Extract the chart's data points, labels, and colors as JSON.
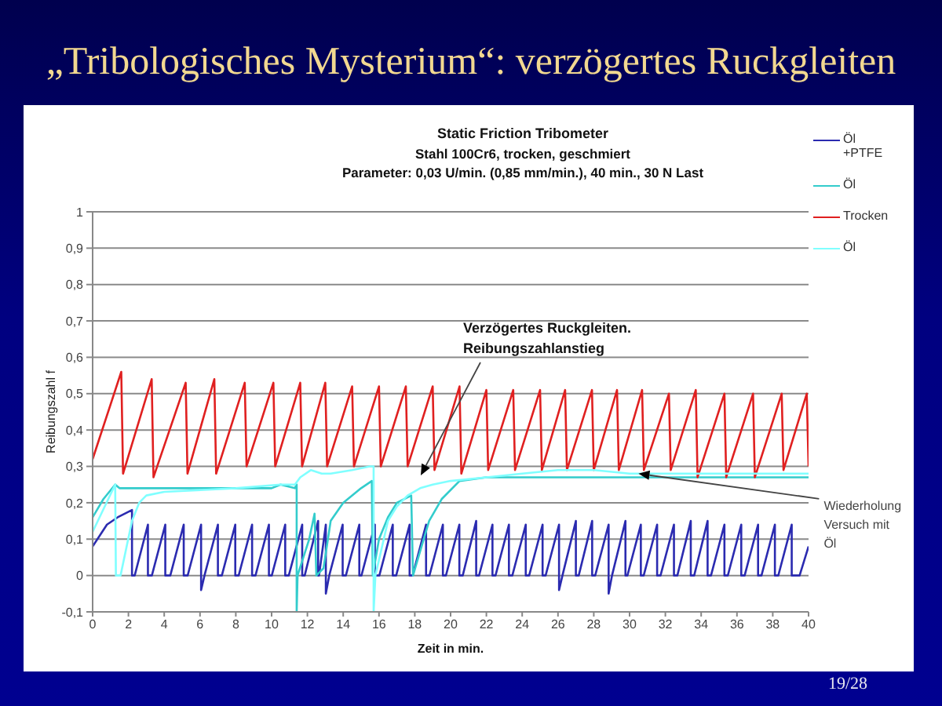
{
  "chart_data": {
    "type": "line",
    "title": "„Tribologisches Mysterium“: verzögertes Ruckgleiten",
    "subtitle": "Static Friction Tribometer\nStahl 100Cr6, trocken, geschmiert\nParameter: 0,03 U/min. (0,85 mm/min.), 40 min., 30 N Last",
    "xlabel": "Zeit in min.",
    "ylabel": "Reibungszahl f",
    "xlim": [
      0,
      40
    ],
    "xticks": [
      0,
      2,
      4,
      6,
      8,
      10,
      12,
      14,
      16,
      18,
      20,
      22,
      24,
      26,
      28,
      30,
      32,
      34,
      36,
      38,
      40
    ],
    "ylim": [
      -0.1,
      1
    ],
    "yticks": [
      {
        "value": -0.1,
        "label": "-0,1"
      },
      0,
      {
        "value": 0.1,
        "label": "0,1"
      },
      {
        "value": 0.2,
        "label": "0,2"
      },
      {
        "value": 0.3,
        "label": "0,3"
      },
      {
        "value": 0.4,
        "label": "0,4"
      },
      {
        "value": 0.5,
        "label": "0,5"
      },
      {
        "value": 0.6,
        "label": "0,6"
      },
      {
        "value": 0.7,
        "label": "0,7"
      },
      {
        "value": 0.8,
        "label": "0,8"
      },
      {
        "value": 0.9,
        "label": "0,9"
      },
      1
    ],
    "grid": "y",
    "legend": "top right",
    "series": [
      {
        "name": "Öl +PTFE",
        "color": "#2b2bb0",
        "x": [
          0,
          0.8,
          1.4,
          2.2,
          2.2,
          2.35,
          3.09,
          3.09,
          3.31,
          4.06,
          4.06,
          4.34,
          5.09,
          5.09,
          5.31,
          6.06,
          6.06,
          6.25,
          7.0,
          7.0,
          7.22,
          7.97,
          7.97,
          8.16,
          8.91,
          8.91,
          9.1,
          9.85,
          9.85,
          10.01,
          10.76,
          10.76,
          10.96,
          11.71,
          11.71,
          11.85,
          12.6,
          12.6,
          12.65,
          13.03,
          13.03,
          13.22,
          13.97,
          13.97,
          14.15,
          14.9,
          14.9,
          15.02,
          15.77,
          15.77,
          16.02,
          16.77,
          16.77,
          16.96,
          17.71,
          17.71,
          17.88,
          18.63,
          18.63,
          18.82,
          19.57,
          19.57,
          19.74,
          20.49,
          20.49,
          20.68,
          21.43,
          21.43,
          21.59,
          22.34,
          22.34,
          22.51,
          23.26,
          23.26,
          23.45,
          24.2,
          24.2,
          24.39,
          25.14,
          25.14,
          25.31,
          26.06,
          26.06,
          26.25,
          27.0,
          27.0,
          27.16,
          27.91,
          27.91,
          28.08,
          28.83,
          28.83,
          29.02,
          29.77,
          29.77,
          29.88,
          30.63,
          30.63,
          30.79,
          31.54,
          31.54,
          31.73,
          32.48,
          32.48,
          32.67,
          33.42,
          33.42,
          33.61,
          34.36,
          34.36,
          34.55,
          35.3,
          35.3,
          35.49,
          36.24,
          36.24,
          36.43,
          37.18,
          37.18,
          37.37,
          38.12,
          38.12,
          38.31,
          39.06,
          39.06,
          39.5,
          40
        ],
        "values": [
          0.08,
          0.14,
          0.16,
          0.18,
          0,
          0,
          0.14,
          0,
          0,
          0.14,
          0,
          0,
          0.14,
          0,
          0,
          0.14,
          -0.04,
          0,
          0.14,
          0,
          0,
          0.14,
          0,
          0,
          0.14,
          0,
          0,
          0.14,
          0,
          0,
          0.14,
          0,
          0,
          0.14,
          0,
          0,
          0.15,
          0,
          0,
          0.14,
          -0.05,
          0,
          0.14,
          0,
          0,
          0.14,
          0,
          0,
          0.14,
          0,
          0,
          0.14,
          0,
          0,
          0.14,
          0,
          0,
          0.14,
          0,
          0,
          0.14,
          0,
          0,
          0.14,
          0,
          0,
          0.15,
          0,
          0,
          0.14,
          0,
          0,
          0.14,
          0,
          0,
          0.14,
          0,
          0,
          0.14,
          0,
          0,
          0.14,
          -0.04,
          0,
          0.15,
          0,
          0,
          0.15,
          0,
          0,
          0.14,
          -0.05,
          0,
          0.15,
          0,
          0,
          0.14,
          0,
          0,
          0.14,
          0,
          0,
          0.14,
          0,
          0,
          0.15,
          0,
          0,
          0.15,
          0,
          0,
          0.14,
          0,
          0,
          0.14,
          0,
          0,
          0.14,
          0,
          0,
          0.14,
          0,
          0,
          0.14,
          0,
          0,
          0.08
        ]
      },
      {
        "name": "Öl",
        "color": "#33cccc",
        "x": [
          0,
          0.6,
          1.26,
          1.5,
          5.0,
          8.0,
          10.0,
          10.5,
          11.3,
          11.4,
          11.4,
          11.45,
          12.1,
          12.4,
          12.5,
          12.9,
          13.3,
          14.0,
          15.0,
          15.6,
          15.65,
          16.0,
          16.5,
          17.0,
          17.8,
          17.9,
          18.2,
          18.8,
          19.5,
          20.5,
          22.0,
          25.0,
          28.0,
          31.0,
          34.0,
          37.0,
          40.0
        ],
        "values": [
          0.16,
          0.21,
          0.25,
          0.24,
          0.24,
          0.24,
          0.24,
          0.25,
          0.24,
          0.25,
          -0.1,
          0,
          0.1,
          0.17,
          0,
          0.02,
          0.15,
          0.2,
          0.24,
          0.26,
          0,
          0.1,
          0.16,
          0.2,
          0.22,
          0,
          0.05,
          0.15,
          0.21,
          0.26,
          0.27,
          0.27,
          0.27,
          0.27,
          0.27,
          0.27,
          0.27
        ]
      },
      {
        "name": "Trocken",
        "color": "#e02020",
        "x": [
          0,
          1.6,
          1.7,
          3.3,
          3.4,
          5.2,
          5.3,
          6.8,
          6.9,
          8.5,
          8.6,
          10.1,
          10.2,
          11.6,
          11.7,
          13.0,
          13.1,
          14.5,
          14.6,
          16.0,
          16.1,
          17.5,
          17.6,
          19.0,
          19.1,
          20.5,
          20.6,
          22.0,
          22.1,
          23.5,
          23.6,
          25.0,
          25.1,
          26.4,
          26.5,
          27.9,
          28.0,
          29.3,
          29.4,
          30.7,
          30.8,
          32.2,
          32.3,
          33.7,
          33.8,
          35.3,
          35.4,
          36.9,
          37.0,
          38.5,
          38.6,
          39.9,
          40
        ],
        "values": [
          0.32,
          0.56,
          0.28,
          0.54,
          0.27,
          0.53,
          0.28,
          0.54,
          0.28,
          0.53,
          0.3,
          0.53,
          0.3,
          0.53,
          0.3,
          0.53,
          0.3,
          0.52,
          0.3,
          0.52,
          0.3,
          0.52,
          0.3,
          0.52,
          0.29,
          0.52,
          0.28,
          0.51,
          0.29,
          0.51,
          0.29,
          0.51,
          0.29,
          0.51,
          0.29,
          0.51,
          0.29,
          0.51,
          0.29,
          0.51,
          0.29,
          0.5,
          0.29,
          0.51,
          0.27,
          0.5,
          0.27,
          0.5,
          0.27,
          0.5,
          0.29,
          0.5,
          0.3
        ]
      },
      {
        "name": "Öl",
        "color": "#80ffff",
        "x": [
          0,
          1.26,
          1.3,
          1.56,
          2.2,
          2.6,
          3.0,
          4.0,
          8.0,
          10.5,
          11.3,
          11.6,
          12.2,
          12.8,
          13.3,
          14.5,
          15.5,
          15.7,
          15.7,
          15.8,
          16.5,
          17.0,
          17.6,
          18.3,
          19.0,
          20.0,
          22.0,
          24.0,
          26.0,
          28.0,
          30.0,
          34.0,
          37.0,
          40.0
        ],
        "values": [
          0.12,
          0.25,
          0,
          0,
          0.15,
          0.2,
          0.22,
          0.23,
          0.24,
          0.25,
          0.25,
          0.27,
          0.29,
          0.28,
          0.28,
          0.29,
          0.3,
          0.3,
          -0.1,
          0,
          0.15,
          0.19,
          0.22,
          0.24,
          0.25,
          0.26,
          0.27,
          0.28,
          0.29,
          0.29,
          0.28,
          0.28,
          0.28,
          0.28
        ]
      }
    ],
    "annotations": [
      "Verzögertes Ruckgleiten.\nReibungszahlanstieg",
      {
        "text": "Wiederholung\nVersuch mit\nÖl",
        "x": 30.5,
        "y": 0.28
      },
      "19/28"
    ]
  }
}
